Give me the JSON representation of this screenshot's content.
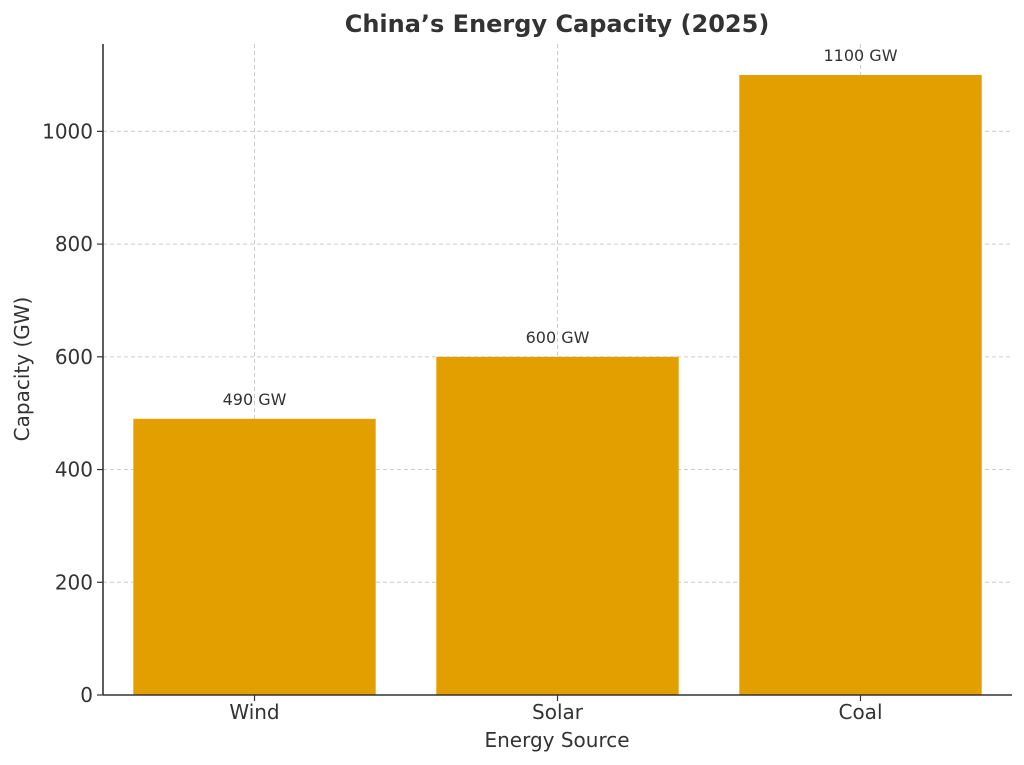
{
  "chart_data": {
    "type": "bar",
    "title": "China’s Energy Capacity (2025)",
    "xlabel": "Energy Source",
    "ylabel": "Capacity (GW)",
    "categories": [
      "Wind",
      "Solar",
      "Coal"
    ],
    "values": [
      490,
      600,
      1100
    ],
    "value_labels": [
      "490 GW",
      "600 GW",
      "1100 GW"
    ],
    "ylim": [
      0,
      1155
    ],
    "yticks": [
      0,
      200,
      400,
      600,
      800,
      1000
    ],
    "grid": true,
    "bar_color": "#e39f00",
    "text_color": "#333333",
    "grid_color": "#cccccc"
  }
}
